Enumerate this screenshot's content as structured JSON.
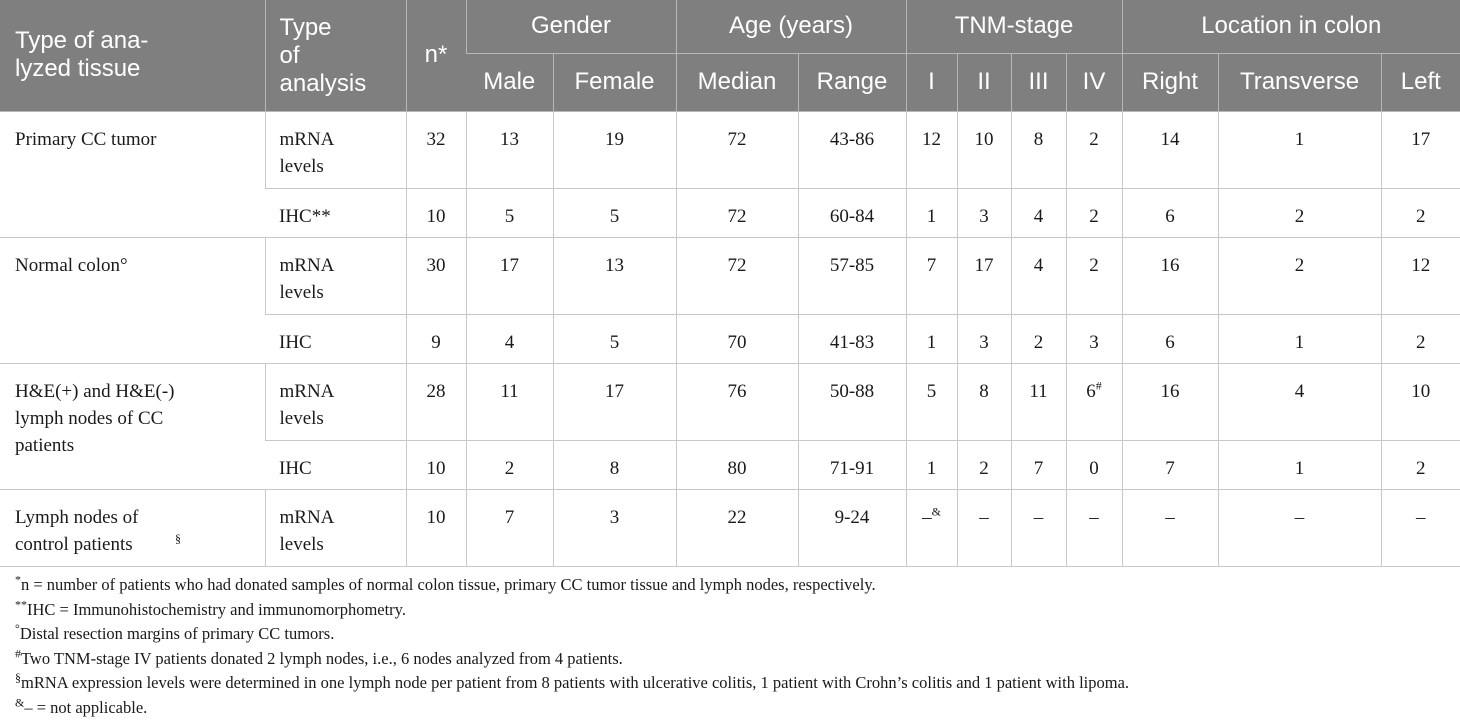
{
  "header": {
    "type_tissue": "Type of ana-lyzed tissue",
    "type_analysis": "Type of analysis",
    "n": "n*",
    "gender": "Gender",
    "age": "Age (years)",
    "tnm": "TNM-stage",
    "location": "Location in colon",
    "male": "Male",
    "female": "Female",
    "median": "Median",
    "range": "Range",
    "stage_i": "I",
    "stage_ii": "II",
    "stage_iii": "III",
    "stage_iv": "IV",
    "right": "Right",
    "transverse": "Transverse",
    "left": "Left"
  },
  "groups": [
    {
      "tissue": "Primary CC tumor",
      "rows": [
        {
          "analysis": "mRNA levels",
          "n": "32",
          "male": "13",
          "female": "19",
          "median": "72",
          "range": "43-86",
          "i": "12",
          "ii": "10",
          "iii": "8",
          "iv": "2",
          "right": "14",
          "transverse": "1",
          "left": "17"
        },
        {
          "analysis": "IHC**",
          "n": "10",
          "male": "5",
          "female": "5",
          "median": "72",
          "range": "60-84",
          "i": "1",
          "ii": "3",
          "iii": "4",
          "iv": "2",
          "right": "6",
          "transverse": "2",
          "left": "2"
        }
      ]
    },
    {
      "tissue": "Normal colon°",
      "rows": [
        {
          "analysis": "mRNA levels",
          "n": "30",
          "male": "17",
          "female": "13",
          "median": "72",
          "range": "57-85",
          "i": "7",
          "ii": "17",
          "iii": "4",
          "iv": "2",
          "right": "16",
          "transverse": "2",
          "left": "12"
        },
        {
          "analysis": "IHC",
          "n": "9",
          "male": "4",
          "female": "5",
          "median": "70",
          "range": "41-83",
          "i": "1",
          "ii": "3",
          "iii": "2",
          "iv": "3",
          "right": "6",
          "transverse": "1",
          "left": "2"
        }
      ]
    },
    {
      "tissue": "H&E(+) and H&E(-) lymph nodes of CC patients",
      "rows": [
        {
          "analysis": "mRNA levels",
          "n": "28",
          "male": "11",
          "female": "17",
          "median": "76",
          "range": "50-88",
          "i": "5",
          "ii": "8",
          "iii": "11",
          "iv": "6",
          "iv_sup": "#",
          "right": "16",
          "transverse": "4",
          "left": "10"
        },
        {
          "analysis": "IHC",
          "n": "10",
          "male": "2",
          "female": "8",
          "median": "80",
          "range": "71-91",
          "i": "1",
          "ii": "2",
          "iii": "7",
          "iv": "0",
          "right": "7",
          "transverse": "1",
          "left": "2"
        }
      ]
    },
    {
      "tissue": "Lymph nodes of control patients",
      "tissue_sup": "§",
      "rows": [
        {
          "analysis": "mRNA levels",
          "n": "10",
          "male": "7",
          "female": "3",
          "median": "22",
          "range": "9-24",
          "i": "–",
          "i_sup": "&",
          "ii": "–",
          "iii": "–",
          "iv": "–",
          "right": "–",
          "transverse": "–",
          "left": "–"
        }
      ]
    }
  ],
  "footnotes": [
    {
      "mark": "*",
      "text": "n = number of patients who had donated samples of normal colon tissue, primary CC tumor tissue and lymph nodes, respectively."
    },
    {
      "mark": "**",
      "text": "IHC = Immunohistochemistry and immunomorphometry."
    },
    {
      "mark": "°",
      "text": "Distal resection margins of primary CC tumors."
    },
    {
      "mark": "#",
      "text": "Two TNM-stage IV patients donated 2 lymph nodes, i.e., 6 nodes analyzed from 4 patients."
    },
    {
      "mark": "§",
      "text": "mRNA expression levels were determined in one lymph node per patient from 8 patients with ulcerative colitis, 1 patient with Crohn’s colitis and 1 patient with lipoma."
    },
    {
      "mark": "&",
      "text": "– = not applicable."
    }
  ]
}
